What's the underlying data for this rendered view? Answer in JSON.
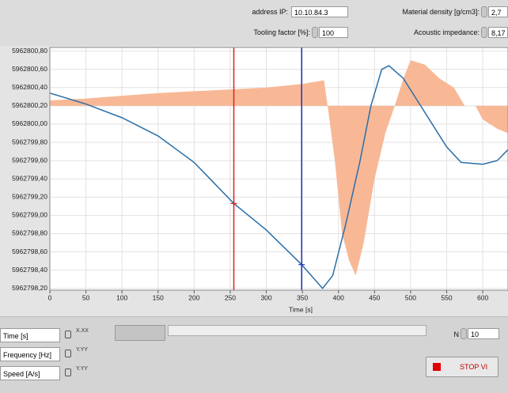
{
  "controls": {
    "address_ip": {
      "label": "address IP:",
      "value": "10.10.84.3"
    },
    "tooling_factor": {
      "label": "Tooling factor [%]:",
      "value": "100"
    },
    "material_density": {
      "label": "Material density [g/cm3]:",
      "value": "2,7"
    },
    "acoustic_impedance": {
      "label": "Acoustic impedance:",
      "value": "8,17"
    },
    "n": {
      "label": "N",
      "value": "10"
    },
    "stop_button": "STOP VI"
  },
  "scale_legend": [
    {
      "name": "Time [s]",
      "format": "X.XX"
    },
    {
      "name": "Frequency [Hz]",
      "format": "Y.YY"
    },
    {
      "name": "Speed [A/s]",
      "format": "Y.YY"
    }
  ],
  "chart_data": {
    "type": "line",
    "xlabel": "Time [s]",
    "xlim": [
      0,
      635
    ],
    "xticks": [
      0,
      50,
      100,
      150,
      200,
      250,
      300,
      350,
      400,
      450,
      500,
      550,
      600
    ],
    "ylim": [
      5962798.18,
      5962800.84
    ],
    "yticks": [
      {
        "value": 5962800.8,
        "label": "5962800,80"
      },
      {
        "value": 5962800.6,
        "label": "5962800,60"
      },
      {
        "value": 5962800.4,
        "label": "5962800,40"
      },
      {
        "value": 5962800.2,
        "label": "5962800,20"
      },
      {
        "value": 5962800.0,
        "label": "5962800,00"
      },
      {
        "value": 5962799.8,
        "label": "5962799,80"
      },
      {
        "value": 5962799.6,
        "label": "5962799,60"
      },
      {
        "value": 5962799.4,
        "label": "5962799,40"
      },
      {
        "value": 5962799.2,
        "label": "5962799,20"
      },
      {
        "value": 5962799.0,
        "label": "5962799,00"
      },
      {
        "value": 5962798.8,
        "label": "5962798,80"
      },
      {
        "value": 5962798.6,
        "label": "5962798,60"
      },
      {
        "value": 5962798.4,
        "label": "5962798,40"
      },
      {
        "value": 5962798.2,
        "label": "5962798,20"
      }
    ],
    "grid": true,
    "series": [
      {
        "color": "#f8b896",
        "fill": true,
        "fill_base": 5962800.2,
        "x": [
          0,
          50,
          100,
          150,
          200,
          250,
          300,
          350,
          380,
          385,
          395,
          405,
          415,
          424,
          435,
          450,
          465,
          478,
          490,
          500,
          520,
          540,
          560,
          575,
          590,
          600,
          620,
          635
        ],
        "values": [
          5962800.26,
          5962800.28,
          5962800.31,
          5962800.34,
          5962800.36,
          5962800.38,
          5962800.4,
          5962800.44,
          5962800.48,
          5962800.2,
          5962799.6,
          5962798.8,
          5962798.5,
          5962798.34,
          5962798.7,
          5962799.4,
          5962799.9,
          5962800.2,
          5962800.5,
          5962800.7,
          5962800.65,
          5962800.5,
          5962800.4,
          5962800.2,
          5962800.2,
          5962800.05,
          5962799.95,
          5962799.9
        ]
      },
      {
        "color": "#2a6fa8",
        "x": [
          0,
          50,
          100,
          150,
          200,
          255,
          300,
          349,
          378,
          392,
          410,
          430,
          445,
          460,
          470,
          490,
          510,
          530,
          550,
          570,
          600,
          620,
          635
        ],
        "values": [
          5962800.34,
          5962800.22,
          5962800.07,
          5962799.87,
          5962799.58,
          5962799.13,
          5962798.84,
          5962798.46,
          5962798.2,
          5962798.34,
          5962798.9,
          5962799.6,
          5962800.2,
          5962800.6,
          5962800.64,
          5962800.5,
          5962800.25,
          5962800.0,
          5962799.75,
          5962799.58,
          5962799.56,
          5962799.6,
          5962799.72
        ]
      }
    ],
    "cursors": [
      {
        "x": 255,
        "color": "#e02020"
      },
      {
        "x": 349,
        "color": "#2030c0"
      }
    ]
  }
}
